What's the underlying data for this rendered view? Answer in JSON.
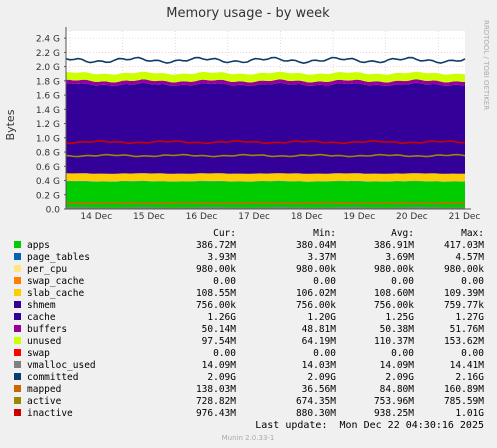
{
  "chart_data": {
    "type": "area",
    "title": "Memory usage - by week",
    "ylabel": "Bytes",
    "side_label": "RRDTOOL / TOBI OETIKER",
    "x_ticks": [
      "14 Dec",
      "15 Dec",
      "16 Dec",
      "17 Dec",
      "18 Dec",
      "19 Dec",
      "20 Dec",
      "21 Dec"
    ],
    "y_ticks": [
      "0.0",
      "0.2 G",
      "0.4 G",
      "0.6 G",
      "0.8 G",
      "1.0 G",
      "1.2 G",
      "1.4 G",
      "1.6 G",
      "1.8 G",
      "2.0 G",
      "2.2 G",
      "2.4 G"
    ],
    "ylim": [
      0,
      2.5
    ],
    "y_unit": "G",
    "grid": true,
    "legend_headers": {
      "cur": "Cur:",
      "min": "Min:",
      "avg": "Avg:",
      "max": "Max:"
    },
    "stack_order": [
      "apps",
      "page_tables",
      "per_cpu",
      "swap_cache",
      "slab_cache",
      "shmem",
      "cache",
      "buffers",
      "unused",
      "swap"
    ],
    "series": [
      {
        "name": "apps",
        "color": "#00cc00",
        "style": "area",
        "cur": "386.72M",
        "min": "380.04M",
        "avg": "386.91M",
        "max": "417.03M",
        "value_g": 0.387
      },
      {
        "name": "page_tables",
        "color": "#0066b3",
        "style": "area",
        "cur": "3.93M",
        "min": "3.37M",
        "avg": "3.69M",
        "max": "4.57M",
        "value_g": 0.004
      },
      {
        "name": "per_cpu",
        "color": "#ffe680",
        "style": "area",
        "cur": "980.00k",
        "min": "980.00k",
        "avg": "980.00k",
        "max": "980.00k",
        "value_g": 0.001
      },
      {
        "name": "swap_cache",
        "color": "#ff8000",
        "style": "area",
        "cur": "0.00",
        "min": "0.00",
        "avg": "0.00",
        "max": "0.00",
        "value_g": 0.0
      },
      {
        "name": "slab_cache",
        "color": "#ffcc00",
        "style": "area",
        "cur": "108.55M",
        "min": "106.02M",
        "avg": "108.60M",
        "max": "109.39M",
        "value_g": 0.106
      },
      {
        "name": "shmem",
        "color": "#330099",
        "style": "area",
        "cur": "756.00k",
        "min": "756.00k",
        "avg": "756.00k",
        "max": "759.77k",
        "value_g": 0.001
      },
      {
        "name": "cache",
        "color": "#330099",
        "style": "area",
        "cur": "1.26G",
        "min": "1.20G",
        "avg": "1.25G",
        "max": "1.27G",
        "value_g": 1.25
      },
      {
        "name": "buffers",
        "color": "#990099",
        "style": "area",
        "cur": "50.14M",
        "min": "48.81M",
        "avg": "50.38M",
        "max": "51.76M",
        "value_g": 0.049
      },
      {
        "name": "unused",
        "color": "#ccff00",
        "style": "area",
        "cur": "97.54M",
        "min": "64.19M",
        "avg": "110.37M",
        "max": "153.62M",
        "value_g": 0.108
      },
      {
        "name": "swap",
        "color": "#ff0000",
        "style": "area",
        "cur": "0.00",
        "min": "0.00",
        "avg": "0.00",
        "max": "0.00",
        "value_g": 0.0
      },
      {
        "name": "vmalloc_used",
        "color": "#808080",
        "style": "line",
        "cur": "14.09M",
        "min": "14.03M",
        "avg": "14.09M",
        "max": "14.41M",
        "value_g": 0.014
      },
      {
        "name": "committed",
        "color": "#0a3d6b",
        "style": "line",
        "cur": "2.09G",
        "min": "2.09G",
        "avg": "2.09G",
        "max": "2.16G",
        "value_g": 2.09
      },
      {
        "name": "mapped",
        "color": "#cc6600",
        "style": "line",
        "cur": "138.03M",
        "min": "36.56M",
        "avg": "84.80M",
        "max": "160.89M",
        "value_g": 0.085
      },
      {
        "name": "active",
        "color": "#998800",
        "style": "line",
        "cur": "728.82M",
        "min": "674.35M",
        "avg": "753.96M",
        "max": "785.59M",
        "value_g": 0.75
      },
      {
        "name": "inactive",
        "color": "#cc0000",
        "style": "line",
        "cur": "976.43M",
        "min": "880.30M",
        "avg": "938.25M",
        "max": "1.01G",
        "value_g": 0.94
      }
    ],
    "last_update": "Last update:  Mon Dec 22 04:30:16 2025",
    "footer": "Munin 2.0.33-1"
  }
}
